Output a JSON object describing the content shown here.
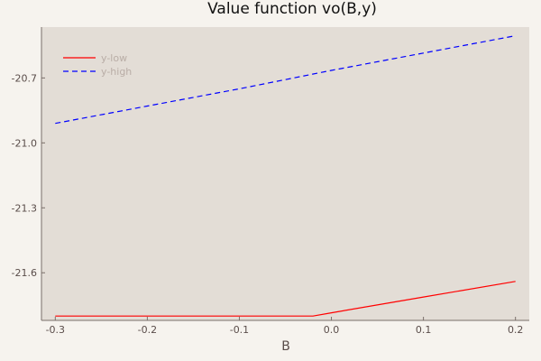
{
  "chart_data": {
    "type": "line",
    "title": "Value function vo(B,y)",
    "xlabel": "B",
    "ylabel": "",
    "xlim": [
      -0.315,
      0.215
    ],
    "ylim": [
      -21.82,
      -20.465
    ],
    "xticks": [
      -0.3,
      -0.2,
      -0.1,
      0.0,
      0.1,
      0.2
    ],
    "xtick_labels": [
      "-0.3",
      "-0.2",
      "-0.1",
      "0.0",
      "0.1",
      "0.2"
    ],
    "yticks": [
      -20.7,
      -21.0,
      -21.3,
      -21.6
    ],
    "ytick_labels": [
      "-20.7",
      "-21.0",
      "-21.3",
      "-21.6"
    ],
    "grid": false,
    "legend_position": "top-left",
    "series": [
      {
        "name": "y-low",
        "color": "#ff0000",
        "style": "solid",
        "x": [
          -0.3,
          -0.2,
          -0.1,
          -0.02,
          0.0,
          0.1,
          0.2
        ],
        "y": [
          -21.8,
          -21.8,
          -21.8,
          -21.8,
          -21.785,
          -21.712,
          -21.64
        ]
      },
      {
        "name": "y-high",
        "color": "#0000ff",
        "style": "dashed",
        "x": [
          -0.3,
          -0.2,
          -0.1,
          0.0,
          0.1,
          0.2
        ],
        "y": [
          -20.91,
          -20.83,
          -20.75,
          -20.665,
          -20.585,
          -20.505
        ]
      }
    ]
  }
}
